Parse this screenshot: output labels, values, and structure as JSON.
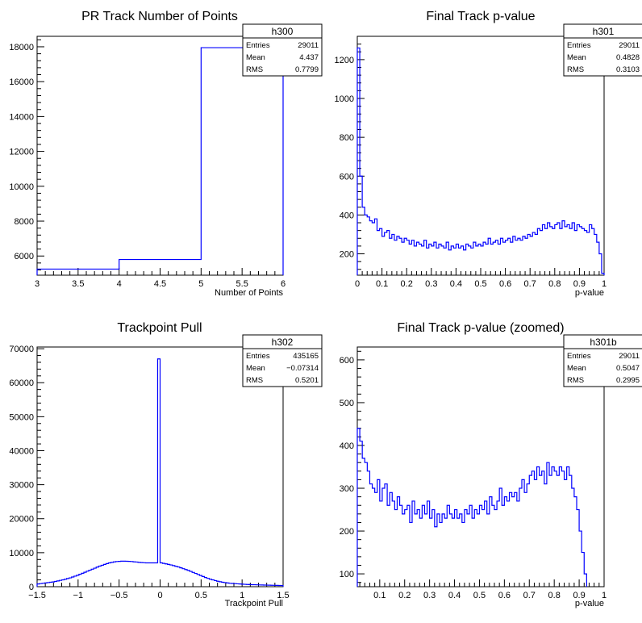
{
  "chart_data": [
    {
      "type": "histogram",
      "title": "PR Track Number of Points",
      "xlabel": "Number of Points",
      "ylabel": "",
      "xlim": [
        3,
        6
      ],
      "ylim": [
        4900,
        18600
      ],
      "x_ticks": [
        3,
        3.5,
        4,
        4.5,
        5,
        5.5,
        6
      ],
      "x_tick_labels": [
        "3",
        "3.5",
        "4",
        "4.5",
        "5",
        "5.5",
        "6"
      ],
      "y_ticks": [
        6000,
        8000,
        10000,
        12000,
        14000,
        16000,
        18000
      ],
      "y_tick_labels": [
        "6000",
        "8000",
        "10000",
        "12000",
        "14000",
        "16000",
        "18000"
      ],
      "bin_edges": [
        3,
        4,
        5,
        6
      ],
      "values": [
        5250,
        5800,
        17950
      ],
      "stats": {
        "name": "h300",
        "rows": [
          {
            "label": "Entries",
            "value": "29011"
          },
          {
            "label": "Mean",
            "value": "4.437"
          },
          {
            "label": "RMS",
            "value": "0.7799"
          }
        ]
      },
      "line_color": "#0000ff"
    },
    {
      "type": "histogram",
      "title": "Final Track p-value",
      "xlabel": "p-value",
      "ylabel": "",
      "xlim": [
        0,
        1
      ],
      "ylim": [
        90,
        1320
      ],
      "x_ticks": [
        0,
        0.1,
        0.2,
        0.3,
        0.4,
        0.5,
        0.6,
        0.7,
        0.8,
        0.9,
        1
      ],
      "x_tick_labels": [
        "0",
        "0.1",
        "0.2",
        "0.3",
        "0.4",
        "0.5",
        "0.6",
        "0.7",
        "0.8",
        "0.9",
        "1"
      ],
      "y_ticks": [
        200,
        400,
        600,
        800,
        1000,
        1200
      ],
      "y_tick_labels": [
        "200",
        "400",
        "600",
        "800",
        "1000",
        "1200"
      ],
      "bin_width": 0.01,
      "values": [
        1260,
        600,
        440,
        400,
        390,
        370,
        360,
        380,
        320,
        330,
        290,
        310,
        320,
        280,
        300,
        270,
        290,
        280,
        260,
        280,
        270,
        250,
        270,
        240,
        260,
        250,
        240,
        270,
        230,
        250,
        240,
        260,
        230,
        250,
        240,
        230,
        260,
        220,
        240,
        230,
        250,
        230,
        240,
        220,
        250,
        240,
        230,
        260,
        240,
        250,
        240,
        260,
        250,
        280,
        250,
        260,
        270,
        250,
        280,
        260,
        270,
        280,
        260,
        290,
        270,
        280,
        270,
        290,
        280,
        300,
        290,
        310,
        300,
        330,
        320,
        350,
        330,
        360,
        340,
        330,
        350,
        360,
        330,
        370,
        340,
        350,
        330,
        360,
        320,
        350,
        340,
        330,
        320,
        310,
        350,
        330,
        300,
        260,
        200,
        100
      ],
      "stats": {
        "name": "h301",
        "rows": [
          {
            "label": "Entries",
            "value": "29011"
          },
          {
            "label": "Mean",
            "value": "0.4828"
          },
          {
            "label": "RMS",
            "value": "0.3103"
          }
        ]
      },
      "line_color": "#0000ff"
    },
    {
      "type": "histogram",
      "title": "Trackpoint Pull",
      "xlabel": "Trackpoint Pull",
      "ylabel": "",
      "xlim": [
        -1.5,
        1.5
      ],
      "ylim": [
        0,
        70500
      ],
      "x_ticks": [
        -1.5,
        -1,
        -0.5,
        0,
        0.5,
        1,
        1.5
      ],
      "x_tick_labels": [
        "−1.5",
        "−1",
        "−0.5",
        "0",
        "0.5",
        "1",
        "1.5"
      ],
      "y_ticks": [
        0,
        10000,
        20000,
        30000,
        40000,
        50000,
        60000,
        70000
      ],
      "y_tick_labels": [
        "0",
        "10000",
        "20000",
        "30000",
        "40000",
        "50000",
        "60000",
        "70000"
      ],
      "bin_width": 0.03,
      "values": [
        800,
        900,
        1000,
        1100,
        1200,
        1300,
        1400,
        1550,
        1700,
        1850,
        2000,
        2200,
        2400,
        2600,
        2850,
        3100,
        3350,
        3650,
        3950,
        4250,
        4550,
        4850,
        5150,
        5450,
        5750,
        6050,
        6300,
        6550,
        6800,
        7000,
        7150,
        7300,
        7400,
        7450,
        7500,
        7500,
        7480,
        7450,
        7400,
        7300,
        7250,
        7150,
        7100,
        7050,
        7000,
        7000,
        7000,
        7000,
        7000,
        67000,
        7000,
        6850,
        6700,
        6550,
        6400,
        6200,
        6000,
        5800,
        5550,
        5300,
        5050,
        4800,
        4500,
        4200,
        3900,
        3600,
        3300,
        3000,
        2700,
        2450,
        2200,
        2000,
        1800,
        1600,
        1450,
        1300,
        1200,
        1100,
        1000,
        950,
        900,
        850,
        800,
        750,
        700,
        650,
        620,
        600,
        580,
        550,
        520,
        500,
        480,
        460,
        440,
        420,
        400,
        380,
        360,
        340
      ],
      "stats": {
        "name": "h302",
        "rows": [
          {
            "label": "Entries",
            "value": "435165"
          },
          {
            "label": "Mean",
            "value": "−0.07314"
          },
          {
            "label": "RMS",
            "value": "0.5201"
          }
        ]
      },
      "line_color": "#0000ff"
    },
    {
      "type": "histogram",
      "title": "Final Track p-value (zoomed)",
      "xlabel": "p-value",
      "ylabel": "",
      "xlim": [
        0.01,
        1
      ],
      "ylim": [
        70,
        630
      ],
      "x_ticks": [
        0.1,
        0.2,
        0.3,
        0.4,
        0.5,
        0.6,
        0.7,
        0.8,
        0.9,
        1
      ],
      "x_tick_labels": [
        "0.1",
        "0.2",
        "0.3",
        "0.4",
        "0.5",
        "0.6",
        "0.7",
        "0.8",
        "0.9",
        "1"
      ],
      "y_ticks": [
        100,
        200,
        300,
        400,
        500,
        600
      ],
      "y_tick_labels": [
        "100",
        "200",
        "300",
        "400",
        "500",
        "600"
      ],
      "bin_width": 0.01,
      "values": [
        440,
        410,
        370,
        360,
        340,
        310,
        300,
        290,
        320,
        270,
        300,
        310,
        260,
        290,
        270,
        250,
        280,
        260,
        240,
        250,
        260,
        220,
        270,
        240,
        250,
        230,
        260,
        240,
        270,
        230,
        250,
        210,
        240,
        220,
        240,
        230,
        260,
        240,
        230,
        250,
        230,
        240,
        220,
        250,
        240,
        260,
        230,
        250,
        240,
        260,
        250,
        270,
        240,
        280,
        260,
        250,
        270,
        300,
        260,
        280,
        270,
        290,
        280,
        290,
        270,
        300,
        320,
        290,
        310,
        330,
        340,
        320,
        350,
        330,
        340,
        310,
        360,
        330,
        350,
        340,
        330,
        350,
        340,
        320,
        350,
        330,
        300,
        280,
        250,
        200,
        150,
        100
      ],
      "stats": {
        "name": "h301b",
        "rows": [
          {
            "label": "Entries",
            "value": "29011"
          },
          {
            "label": "Mean",
            "value": "0.5047"
          },
          {
            "label": "RMS",
            "value": "0.2995"
          }
        ]
      },
      "line_color": "#0000ff"
    }
  ]
}
